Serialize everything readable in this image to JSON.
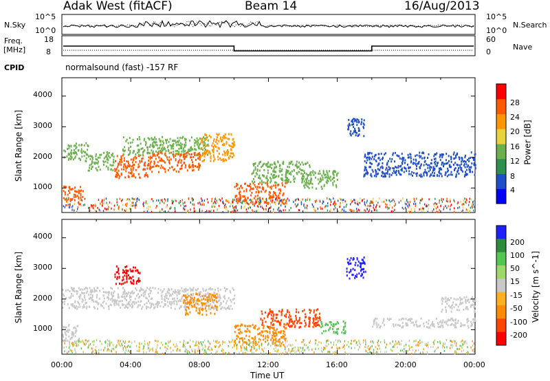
{
  "header": {
    "radar": "Adak West (fitACF)",
    "beam": "Beam 14",
    "date": "16/Aug/2013"
  },
  "top_panel": {
    "nsky_label": "N.Sky",
    "nsky_ticks": [
      "10^5",
      "10^0"
    ],
    "nsearch_label": "N.Search",
    "freq_label": "Freq.",
    "freq_unit": "[MHz]",
    "freq_ticks": [
      "18",
      "8"
    ],
    "nave_label": "Nave",
    "nave_ticks": [
      "60",
      "0"
    ],
    "cpid_label": "CPID",
    "cpid_text": "normalsound (fast) -157 RF"
  },
  "chart_data": [
    {
      "type": "heatmap",
      "name": "power",
      "xlabel": "",
      "ylabel": "Slant Range [km]",
      "xlim": [
        0,
        24
      ],
      "ylim": [
        200,
        4600
      ],
      "yticks": [
        "1000",
        "2000",
        "3000",
        "4000"
      ],
      "colorbar": {
        "label": "Power [dB]",
        "ticks": [
          "4",
          "8",
          "12",
          "16",
          "20",
          "24",
          "28"
        ],
        "colors": [
          "#0000ff",
          "#1e4fc8",
          "#2f8f4f",
          "#6ab04c",
          "#e8d23a",
          "#ff9600",
          "#ff5a00",
          "#ff0000"
        ]
      },
      "features": [
        {
          "t0": 0.0,
          "t1": 1.2,
          "r0": 600,
          "r1": 1100,
          "level": 26
        },
        {
          "t0": 0.0,
          "t1": 1.5,
          "r0": 1900,
          "r1": 2500,
          "level": 14
        },
        {
          "t0": 1.5,
          "t1": 3.0,
          "r0": 1600,
          "r1": 2200,
          "level": 12
        },
        {
          "t0": 3.0,
          "t1": 5.0,
          "r0": 1350,
          "r1": 2100,
          "level": 26
        },
        {
          "t0": 3.5,
          "t1": 8.5,
          "r0": 2100,
          "r1": 2700,
          "level": 14
        },
        {
          "t0": 5.0,
          "t1": 8.0,
          "r0": 1550,
          "r1": 2200,
          "level": 24
        },
        {
          "t0": 8.0,
          "t1": 10.0,
          "r0": 1900,
          "r1": 2800,
          "level": 20
        },
        {
          "t0": 10.0,
          "t1": 13.0,
          "r0": 500,
          "r1": 1200,
          "level": 26
        },
        {
          "t0": 11.0,
          "t1": 14.5,
          "r0": 1200,
          "r1": 1900,
          "level": 14
        },
        {
          "t0": 14.0,
          "t1": 16.0,
          "r0": 1000,
          "r1": 1600,
          "level": 12
        },
        {
          "t0": 16.5,
          "t1": 17.6,
          "r0": 2700,
          "r1": 3300,
          "level": 6
        },
        {
          "t0": 17.5,
          "t1": 24.0,
          "r0": 1400,
          "r1": 2200,
          "level": 5
        }
      ]
    },
    {
      "type": "heatmap",
      "name": "velocity",
      "xlabel": "Time UT",
      "ylabel": "Slant Range [km]",
      "xlim": [
        0,
        24
      ],
      "ylim": [
        200,
        4600
      ],
      "xticks": [
        "00:00",
        "04:00",
        "08:00",
        "12:00",
        "16:00",
        "20:00",
        "00:00"
      ],
      "yticks": [
        "1000",
        "2000",
        "3000",
        "4000"
      ],
      "colorbar": {
        "label": "Velocity [m s^-1]",
        "ticks": [
          "200",
          "100",
          "50",
          "15",
          "-15",
          "-50",
          "-100",
          "-200"
        ],
        "colors": [
          "#2020ff",
          "#2e8b3a",
          "#52c652",
          "#9fd86a",
          "#c8c8c8",
          "#ffb020",
          "#ff8c00",
          "#ff4500",
          "#ff0000"
        ]
      },
      "features": [
        {
          "t0": 0.0,
          "t1": 1.0,
          "r0": 600,
          "r1": 1200,
          "value": 0
        },
        {
          "t0": 0.0,
          "t1": 10.0,
          "r0": 1700,
          "r1": 2400,
          "value": 0
        },
        {
          "t0": 3.0,
          "t1": 4.5,
          "r0": 2500,
          "r1": 3100,
          "value": -200
        },
        {
          "t0": 7.0,
          "t1": 9.0,
          "r0": 1500,
          "r1": 2200,
          "value": -50
        },
        {
          "t0": 10.0,
          "t1": 13.0,
          "r0": 500,
          "r1": 1200,
          "value": -50
        },
        {
          "t0": 11.5,
          "t1": 15.0,
          "r0": 1100,
          "r1": 1700,
          "value": -100
        },
        {
          "t0": 15.0,
          "t1": 16.5,
          "r0": 900,
          "r1": 1300,
          "value": 50
        },
        {
          "t0": 16.5,
          "t1": 17.6,
          "r0": 2700,
          "r1": 3400,
          "value": 200
        },
        {
          "t0": 18.0,
          "t1": 24.0,
          "r0": 1100,
          "r1": 1400,
          "value": 0
        },
        {
          "t0": 22.0,
          "t1": 24.0,
          "r0": 1600,
          "r1": 2100,
          "value": 0
        }
      ]
    }
  ]
}
